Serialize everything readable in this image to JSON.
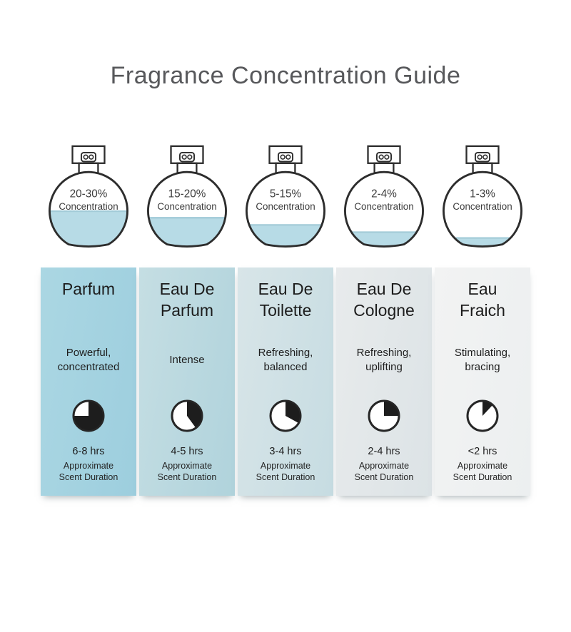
{
  "title": "Fragrance Concentration Guide",
  "colors": {
    "water": "#b7dbe6",
    "water_edge": "#a2cbd8",
    "bottle_outline": "#2d2d2d",
    "title_text": "#57585b",
    "panel_text": "#1c1c1c"
  },
  "columns": [
    {
      "name": "Parfum",
      "concentration": "20-30%",
      "concentration_label": "Concentration",
      "bottle_fill_percent": 47,
      "description": "Powerful, concentrated",
      "duration": "6-8 hrs",
      "note_line1": "Approximate",
      "note_line2": "Scent Duration",
      "clock_fill_percent": 75,
      "panel_gradient_start": "#abd7e3",
      "panel_gradient_end": "#9dcede"
    },
    {
      "name": "Eau De Parfum",
      "concentration": "15-20%",
      "concentration_label": "Concentration",
      "bottle_fill_percent": 38,
      "description": "Intense",
      "duration": "4-5 hrs",
      "note_line1": "Approximate",
      "note_line2": "Scent Duration",
      "clock_fill_percent": 40,
      "panel_gradient_start": "#c5dee3",
      "panel_gradient_end": "#b0d3dc"
    },
    {
      "name": "Eau De Toilette",
      "concentration": "5-15%",
      "concentration_label": "Concentration",
      "bottle_fill_percent": 28,
      "description": "Refreshing, balanced",
      "duration": "3-4 hrs",
      "note_line1": "Approximate",
      "note_line2": "Scent Duration",
      "clock_fill_percent": 33,
      "panel_gradient_start": "#d8e5e8",
      "panel_gradient_end": "#c6dce2"
    },
    {
      "name": "Eau De Cologne",
      "concentration": "2-4%",
      "concentration_label": "Concentration",
      "bottle_fill_percent": 18,
      "description": "Refreshing, uplifting",
      "duration": "2-4 hrs",
      "note_line1": "Approximate",
      "note_line2": "Scent Duration",
      "clock_fill_percent": 25,
      "panel_gradient_start": "#e8ebec",
      "panel_gradient_end": "#dce3e6"
    },
    {
      "name": "Eau Fraich",
      "concentration": "1-3%",
      "concentration_label": "Concentration",
      "bottle_fill_percent": 10,
      "description": "Stimulating, bracing",
      "duration": "<2 hrs",
      "note_line1": "Approximate",
      "note_line2": "Scent Duration",
      "clock_fill_percent": 12,
      "panel_gradient_start": "#f2f3f3",
      "panel_gradient_end": "#eceff0"
    }
  ]
}
